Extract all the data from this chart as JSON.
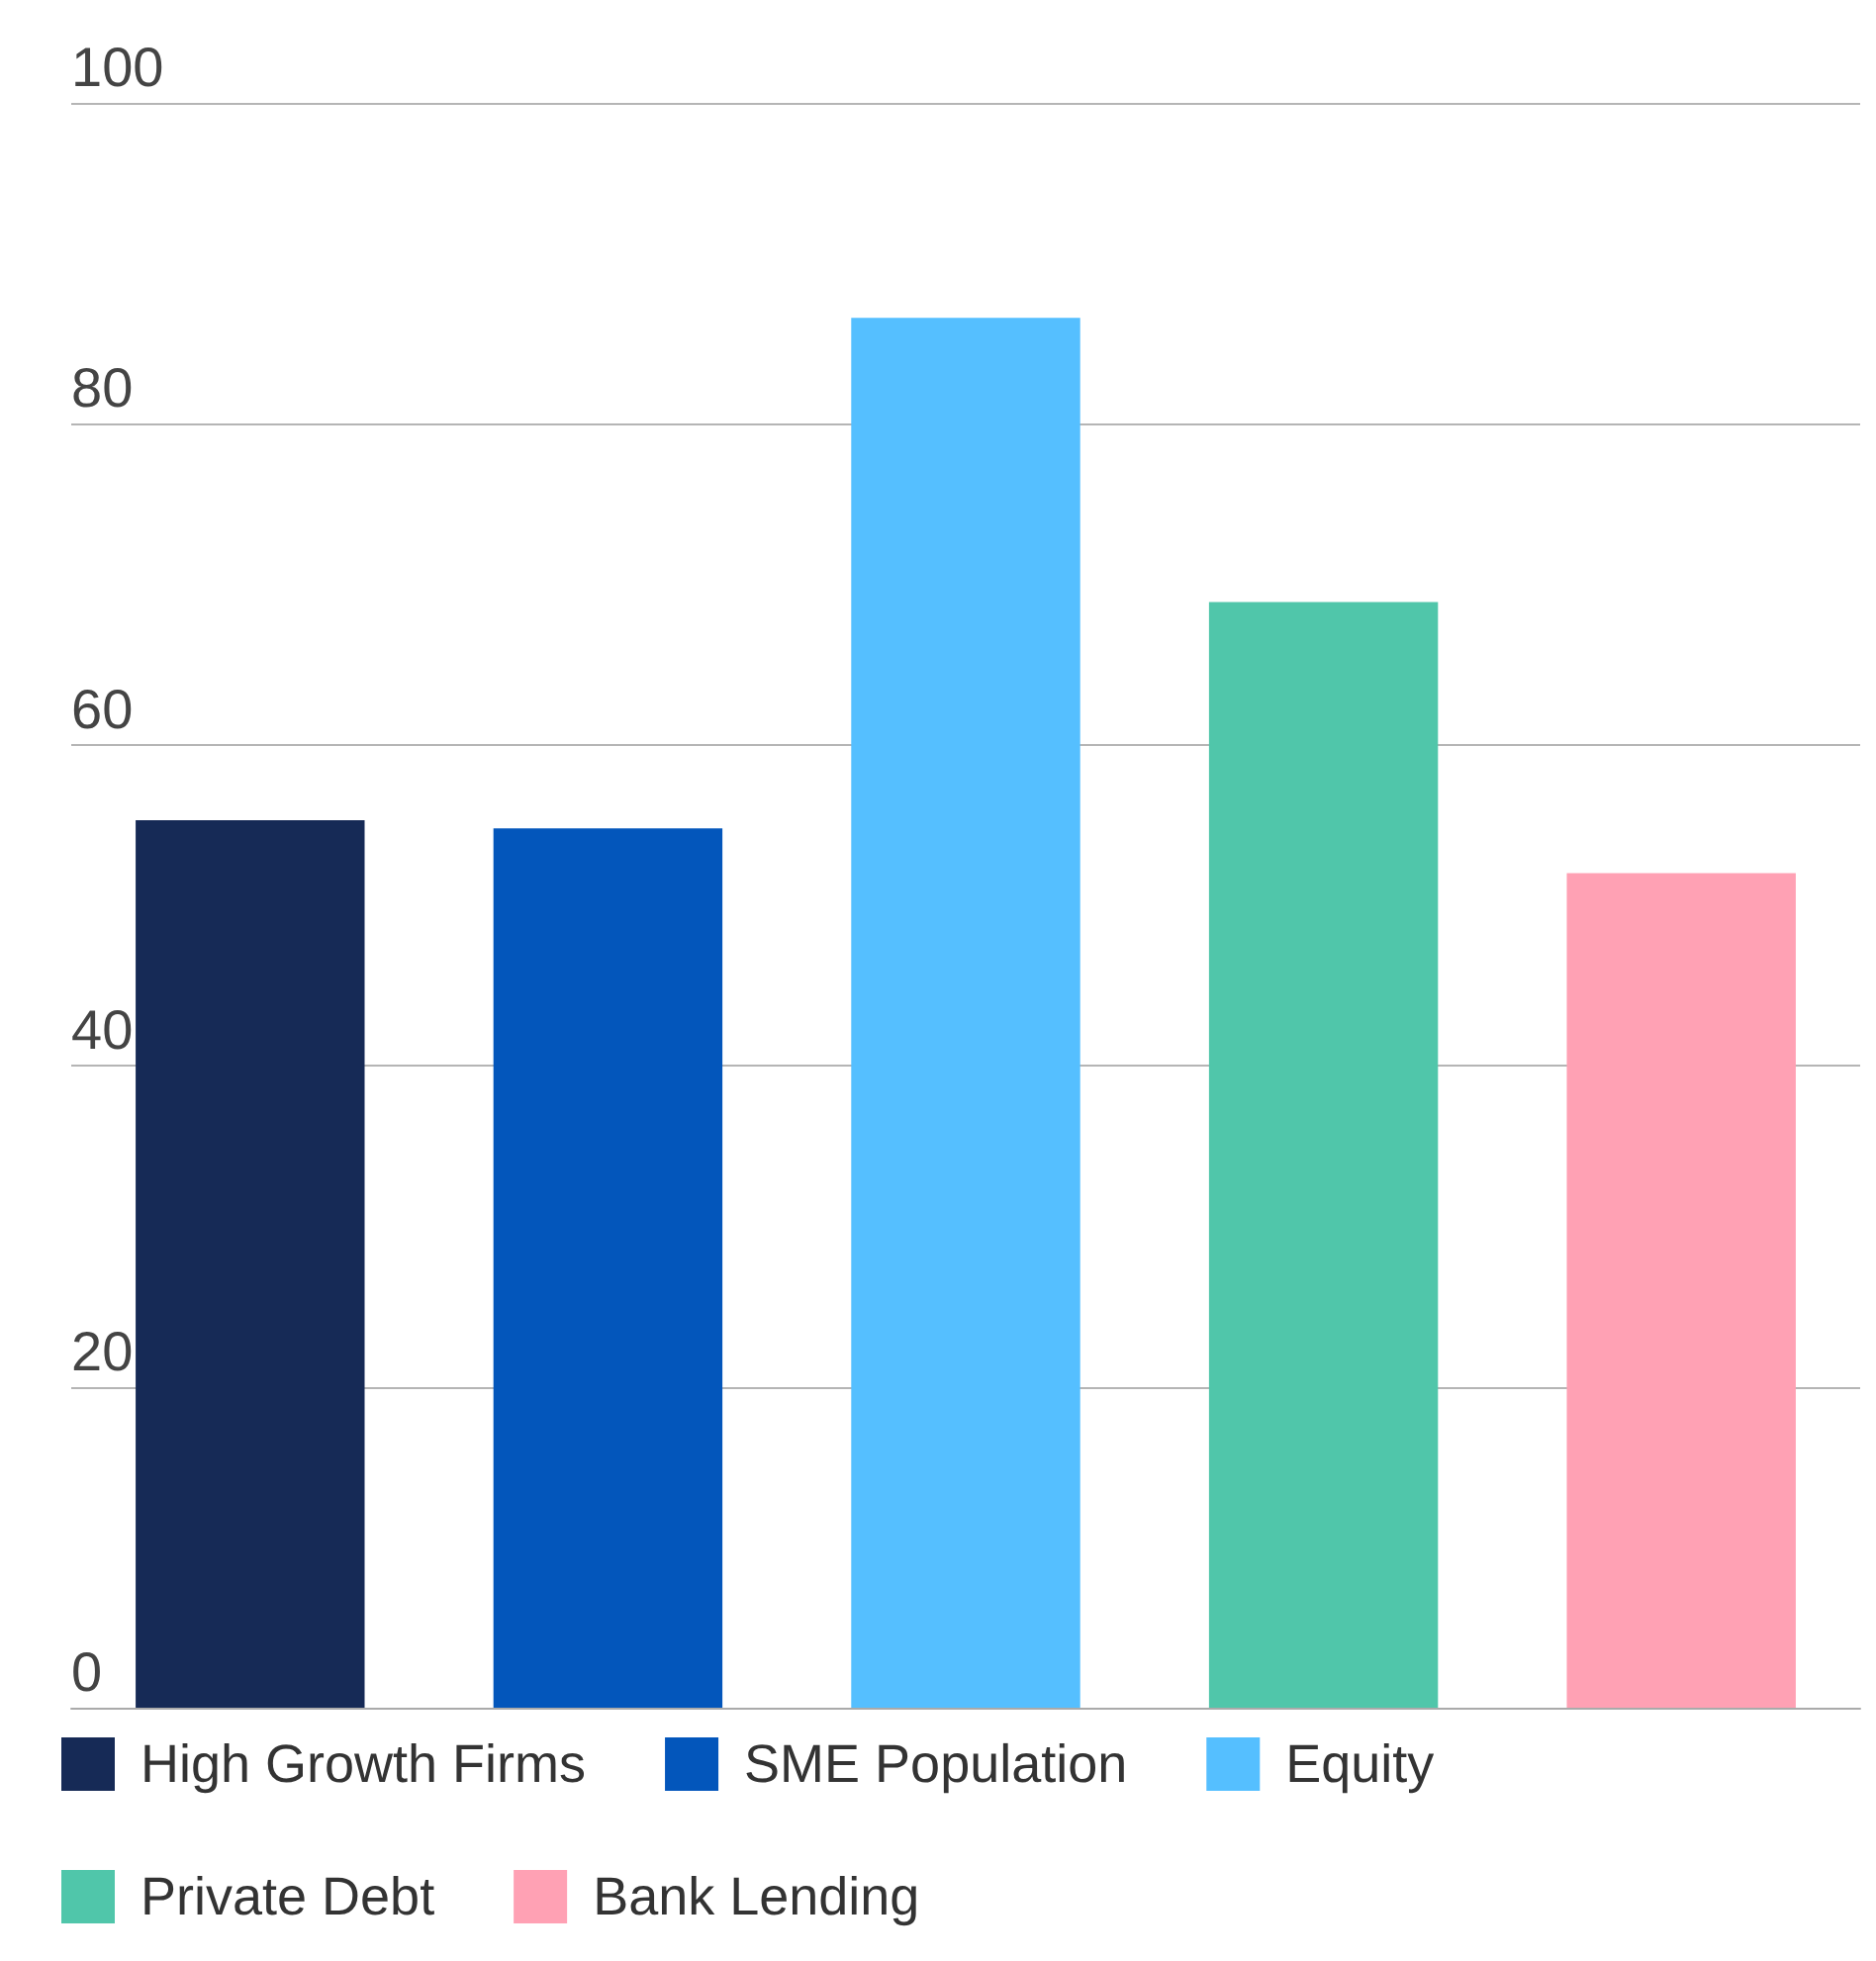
{
  "chart_data": {
    "type": "bar",
    "categories": [
      null,
      null,
      null,
      null,
      null
    ],
    "stacked": true,
    "series": [
      {
        "name": "High Growth Firms",
        "color": "#162a56",
        "values": [
          55.3,
          null,
          null,
          null,
          null
        ]
      },
      {
        "name": "SME Population",
        "color": "#0356bb",
        "values": [
          null,
          54.8,
          null,
          null,
          null
        ]
      },
      {
        "name": "Equity",
        "color": "#55bfff",
        "values": [
          null,
          null,
          86.6,
          null,
          null
        ]
      },
      {
        "name": "Private Debt",
        "color": "#50c6aa",
        "values": [
          null,
          null,
          null,
          68.9,
          null
        ]
      },
      {
        "name": "Bank Lending",
        "color": "#ffa1b4",
        "values": [
          null,
          null,
          null,
          null,
          52.0
        ]
      }
    ],
    "ylim": [
      0,
      100
    ],
    "yticks": [
      0,
      20,
      40,
      60,
      80,
      100
    ],
    "grid": "y",
    "legend": "bottom"
  }
}
